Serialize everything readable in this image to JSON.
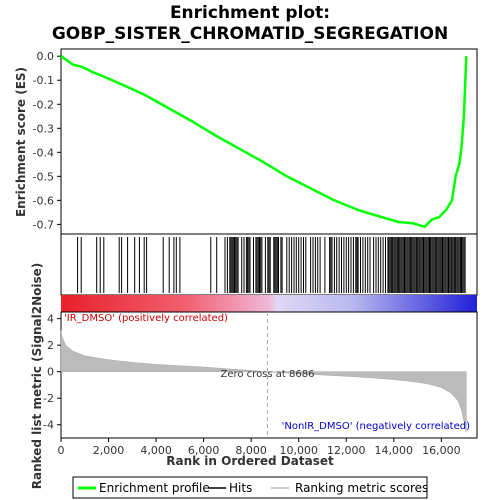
{
  "chart_data": {
    "type": "line",
    "title_line1": "Enrichment plot:",
    "title_line2": "GOBP_SISTER_CHROMATID_SEGREGATION",
    "es_ylabel": "Enrichment score (ES)",
    "metric_ylabel": "Ranked list metric (Signal2Noise)",
    "xlabel": "Rank in Ordered Dataset",
    "xlim": [
      0,
      17500
    ],
    "x_ticks": [
      0,
      2000,
      4000,
      6000,
      8000,
      10000,
      12000,
      14000,
      16000
    ],
    "x_tick_labels": [
      "0",
      "2,000",
      "4,000",
      "6,000",
      "8,000",
      "10,000",
      "12,000",
      "14,000",
      "16,000"
    ],
    "es_ylim": [
      -0.74,
      0.03
    ],
    "es_ticks": [
      0.0,
      -0.1,
      -0.2,
      -0.3,
      -0.4,
      -0.5,
      -0.6,
      -0.7
    ],
    "es_tick_labels": [
      "0.0",
      "-0.1",
      "-0.2",
      "-0.3",
      "-0.4",
      "-0.5",
      "-0.6",
      "-0.7"
    ],
    "metric_ylim": [
      -5,
      4.5
    ],
    "metric_ticks": [
      4,
      2,
      0,
      -2,
      -4
    ],
    "metric_tick_labels": [
      "4",
      "2",
      "0",
      "-2",
      "-4"
    ],
    "es_curve": {
      "name": "Enrichment profile",
      "color": "#00ff00",
      "x": [
        0,
        500,
        900,
        1300,
        1800,
        2500,
        3500,
        4500,
        5500,
        6500,
        7500,
        8500,
        9500,
        10500,
        11500,
        12500,
        13500,
        14200,
        14800,
        15300,
        15600,
        15900,
        16200,
        16450,
        16600,
        16750,
        16850,
        16950,
        17050
      ],
      "y": [
        0.0,
        -0.035,
        -0.045,
        -0.065,
        -0.085,
        -0.115,
        -0.16,
        -0.215,
        -0.27,
        -0.33,
        -0.385,
        -0.44,
        -0.5,
        -0.55,
        -0.6,
        -0.64,
        -0.67,
        -0.69,
        -0.695,
        -0.71,
        -0.68,
        -0.67,
        -0.64,
        -0.6,
        -0.5,
        -0.45,
        -0.38,
        -0.25,
        0.0
      ]
    },
    "hits_label": "Hits",
    "hits": [
      700,
      850,
      1500,
      1650,
      1800,
      2450,
      2550,
      2800,
      3100,
      3300,
      3500,
      3600,
      4300,
      4550,
      4750,
      4850,
      5000,
      6300,
      6550,
      6900,
      7000,
      7100,
      7150,
      7200,
      7250,
      7300,
      7350,
      7400,
      7450,
      7600,
      7700,
      7800,
      7850,
      7900,
      7950,
      8100,
      8200,
      8250,
      8300,
      8350,
      8400,
      8450,
      8600,
      8700,
      8750,
      8800,
      8950,
      9000,
      9050,
      9100,
      9150,
      9250,
      9300,
      9500,
      9600,
      9700,
      9800,
      9900,
      10000,
      10100,
      10200,
      10300,
      10500,
      10600,
      10700,
      10800,
      10900,
      11100,
      11300,
      11350,
      11400,
      11500,
      11600,
      11700,
      11800,
      11900,
      12000,
      12100,
      12200,
      12300,
      12400,
      12450,
      12500,
      12600,
      12700,
      12800,
      12900,
      13000,
      13150,
      13250,
      13350,
      13450,
      13550,
      13650,
      13750,
      13800,
      13850,
      13900,
      13950,
      14000,
      14050,
      14100,
      14150,
      14200,
      14250,
      14300,
      14350,
      14400,
      14450,
      14500,
      14550,
      14600,
      14650,
      14700,
      14750,
      14800,
      14850,
      14900,
      14950,
      15000,
      15050,
      15100,
      15150,
      15200,
      15250,
      15300,
      15350,
      15400,
      15450,
      15500,
      15550,
      15600,
      15650,
      15700,
      15750,
      15800,
      15850,
      15900,
      15950,
      16000,
      16050,
      16100,
      16150,
      16200,
      16250,
      16300,
      16350,
      16400,
      16450,
      16500,
      16550,
      16600,
      16650,
      16700,
      16750,
      16800,
      16850,
      16900,
      16950,
      17000
    ],
    "ranking_label": "Ranking metric scores",
    "metric_curve": {
      "x": [
        0,
        50,
        200,
        500,
        1000,
        2000,
        3000,
        4000,
        5000,
        6000,
        7000,
        8000,
        8686,
        9000,
        10000,
        11000,
        12000,
        13000,
        14000,
        15000,
        15500,
        16000,
        16400,
        16700,
        16850,
        16950,
        17050
      ],
      "y": [
        3.1,
        2.6,
        2.0,
        1.55,
        1.2,
        0.9,
        0.7,
        0.55,
        0.45,
        0.35,
        0.22,
        0.1,
        0.0,
        -0.05,
        -0.15,
        -0.25,
        -0.35,
        -0.45,
        -0.6,
        -0.8,
        -0.95,
        -1.2,
        -1.6,
        -2.2,
        -2.9,
        -3.7,
        -4.6
      ]
    },
    "zero_cross_label": "Zero cross at 8686",
    "zero_cross_x": 8686,
    "pos_label": "'IR_DMSO' (positively correlated)",
    "neg_label": "'NonIR_DMSO' (negatively correlated)",
    "legend": [
      {
        "label": "Enrichment profile",
        "color": "#00ff00",
        "kind": "line"
      },
      {
        "label": "Hits",
        "color": "#000000",
        "kind": "line"
      },
      {
        "label": "Ranking metric scores",
        "color": "#bbbbbb",
        "kind": "line"
      }
    ]
  }
}
